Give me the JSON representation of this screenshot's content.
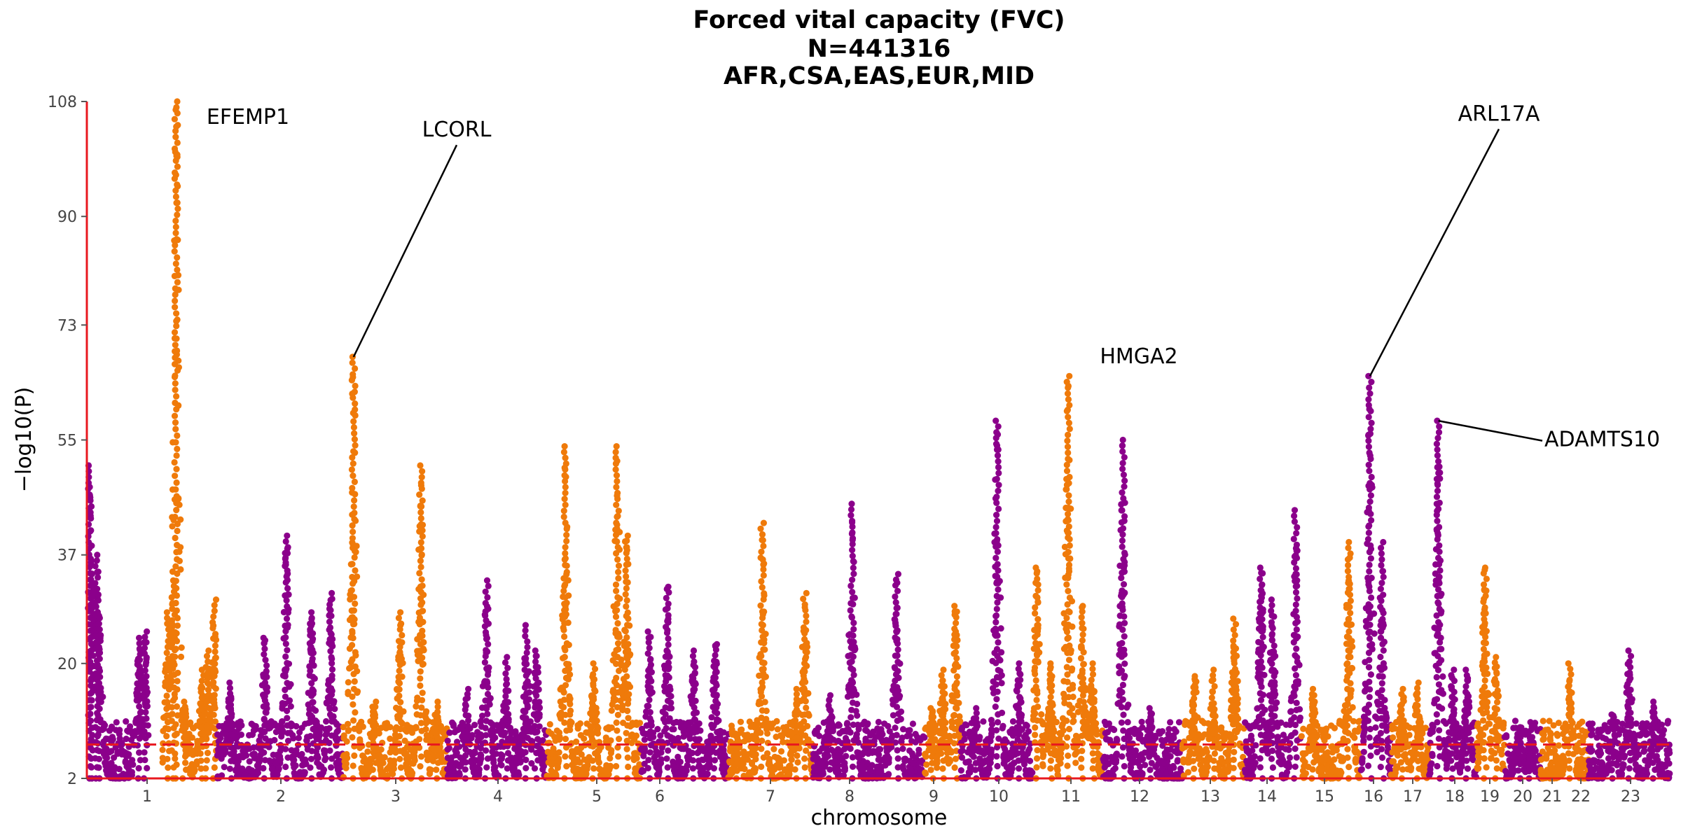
{
  "chart_data": {
    "type": "scatter",
    "subtype": "manhattan",
    "title": [
      "Forced vital capacity (FVC)",
      "N=441316",
      "AFR,CSA,EAS,EUR,MID"
    ],
    "xlabel": "chromosome",
    "ylabel": "−log10(P)",
    "ylim": [
      2,
      108
    ],
    "yticks": [
      2,
      20,
      37,
      55,
      73,
      90,
      108
    ],
    "significance_threshold": 7.3,
    "colors": {
      "odd": "#8b008b",
      "even": "#ef7a0a",
      "threshold": "#e8181f",
      "axis": "#e8181f"
    },
    "grid": false,
    "legend": "none",
    "chromosomes": [
      {
        "label": "1",
        "peaks": [
          {
            "pos": 0.05,
            "y": 51
          },
          {
            "pos": 0.08,
            "y": 34
          },
          {
            "pos": 0.16,
            "y": 37
          },
          {
            "pos": 0.2,
            "y": 28
          },
          {
            "pos": 0.85,
            "y": 24
          },
          {
            "pos": 0.95,
            "y": 25
          }
        ]
      },
      {
        "label": "2",
        "peaks": [
          {
            "pos": 0.1,
            "y": 28
          },
          {
            "pos": 0.2,
            "y": 33
          },
          {
            "pos": 0.25,
            "y": 108
          },
          {
            "pos": 0.4,
            "y": 14
          },
          {
            "pos": 0.72,
            "y": 19
          },
          {
            "pos": 0.82,
            "y": 22
          },
          {
            "pos": 0.95,
            "y": 30
          }
        ]
      },
      {
        "label": "3",
        "peaks": [
          {
            "pos": 0.1,
            "y": 17
          },
          {
            "pos": 0.38,
            "y": 24
          },
          {
            "pos": 0.55,
            "y": 40
          },
          {
            "pos": 0.75,
            "y": 28
          },
          {
            "pos": 0.9,
            "y": 31
          }
        ]
      },
      {
        "label": "4",
        "peaks": [
          {
            "pos": 0.1,
            "y": 68
          },
          {
            "pos": 0.3,
            "y": 14
          },
          {
            "pos": 0.55,
            "y": 28
          },
          {
            "pos": 0.75,
            "y": 51
          },
          {
            "pos": 0.9,
            "y": 14
          }
        ]
      },
      {
        "label": "5",
        "peaks": [
          {
            "pos": 0.2,
            "y": 16
          },
          {
            "pos": 0.4,
            "y": 33
          },
          {
            "pos": 0.6,
            "y": 21
          },
          {
            "pos": 0.8,
            "y": 26
          },
          {
            "pos": 0.9,
            "y": 22
          }
        ]
      },
      {
        "label": "6",
        "peaks": [
          {
            "pos": 0.2,
            "y": 54
          },
          {
            "pos": 0.5,
            "y": 20
          },
          {
            "pos": 0.75,
            "y": 54
          },
          {
            "pos": 0.85,
            "y": 40
          }
        ]
      },
      {
        "label": "7",
        "peaks": [
          {
            "pos": 0.1,
            "y": 25
          },
          {
            "pos": 0.3,
            "y": 32
          },
          {
            "pos": 0.6,
            "y": 22
          },
          {
            "pos": 0.85,
            "y": 23
          }
        ]
      },
      {
        "label": "8",
        "peaks": [
          {
            "pos": 0.1,
            "y": 9
          },
          {
            "pos": 0.4,
            "y": 42
          },
          {
            "pos": 0.8,
            "y": 16
          },
          {
            "pos": 0.9,
            "y": 31
          }
        ]
      },
      {
        "label": "9",
        "peaks": [
          {
            "pos": 0.15,
            "y": 15
          },
          {
            "pos": 0.35,
            "y": 45
          },
          {
            "pos": 0.75,
            "y": 34
          }
        ]
      },
      {
        "label": "10",
        "peaks": [
          {
            "pos": 0.2,
            "y": 13
          },
          {
            "pos": 0.5,
            "y": 19
          },
          {
            "pos": 0.85,
            "y": 29
          }
        ]
      },
      {
        "label": "11",
        "peaks": [
          {
            "pos": 0.2,
            "y": 13
          },
          {
            "pos": 0.5,
            "y": 58
          },
          {
            "pos": 0.8,
            "y": 20
          }
        ]
      },
      {
        "label": "12",
        "peaks": [
          {
            "pos": 0.05,
            "y": 35
          },
          {
            "pos": 0.25,
            "y": 20
          },
          {
            "pos": 0.5,
            "y": 65
          },
          {
            "pos": 0.7,
            "y": 29
          },
          {
            "pos": 0.85,
            "y": 20
          }
        ]
      },
      {
        "label": "13",
        "peaks": [
          {
            "pos": 0.25,
            "y": 55
          },
          {
            "pos": 0.6,
            "y": 13
          }
        ]
      },
      {
        "label": "14",
        "peaks": [
          {
            "pos": 0.2,
            "y": 18
          },
          {
            "pos": 0.5,
            "y": 19
          },
          {
            "pos": 0.85,
            "y": 27
          }
        ]
      },
      {
        "label": "15",
        "peaks": [
          {
            "pos": 0.3,
            "y": 35
          },
          {
            "pos": 0.5,
            "y": 30
          },
          {
            "pos": 0.9,
            "y": 44
          }
        ]
      },
      {
        "label": "16",
        "peaks": [
          {
            "pos": 0.2,
            "y": 16
          },
          {
            "pos": 0.8,
            "y": 39
          }
        ]
      },
      {
        "label": "17",
        "peaks": [
          {
            "pos": 0.3,
            "y": 65
          },
          {
            "pos": 0.7,
            "y": 39
          }
        ]
      },
      {
        "label": "18",
        "peaks": [
          {
            "pos": 0.3,
            "y": 16
          },
          {
            "pos": 0.7,
            "y": 17
          }
        ]
      },
      {
        "label": "19",
        "peaks": [
          {
            "pos": 0.2,
            "y": 58
          },
          {
            "pos": 0.5,
            "y": 19
          },
          {
            "pos": 0.8,
            "y": 19
          }
        ]
      },
      {
        "label": "20",
        "peaks": [
          {
            "pos": 0.3,
            "y": 35
          },
          {
            "pos": 0.7,
            "y": 21
          }
        ]
      },
      {
        "label": "21",
        "peaks": [
          {
            "pos": 0.4,
            "y": 10
          },
          {
            "pos": 0.7,
            "y": 8
          }
        ]
      },
      {
        "label": "22",
        "peaks": [
          {
            "pos": 0.6,
            "y": 20
          }
        ]
      },
      {
        "label": "23",
        "peaks": [
          {
            "pos": 0.3,
            "y": 12
          },
          {
            "pos": 0.5,
            "y": 22
          },
          {
            "pos": 0.8,
            "y": 14
          }
        ]
      }
    ],
    "annotations": [
      {
        "gene": "EFEMP1",
        "chrom": "2",
        "pos": 0.25,
        "y": 108,
        "label_y": 104.5,
        "leader": false
      },
      {
        "gene": "LCORL",
        "chrom": "4",
        "pos": 0.1,
        "y": 68,
        "label_y": 102.5,
        "leader": true
      },
      {
        "gene": "HMGA2",
        "chrom": "12",
        "pos": 0.5,
        "y": 65,
        "label_y": 67,
        "leader": false
      },
      {
        "gene": "ARL17A",
        "chrom": "17",
        "pos": 0.3,
        "y": 65,
        "label_y": 105,
        "leader": true
      },
      {
        "gene": "ADAMTS10",
        "chrom": "19",
        "pos": 0.2,
        "y": 58,
        "label_y": 54,
        "leader": true
      }
    ]
  }
}
